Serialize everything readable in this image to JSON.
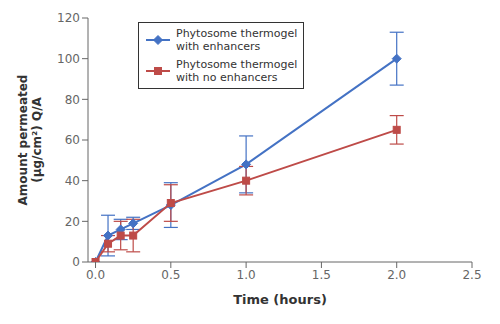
{
  "chart_data": {
    "type": "line",
    "xlabel": "Time (hours)",
    "ylabel": "Amount permeated\n(μg/cm²) Q/A",
    "x": [
      0,
      0.083,
      0.167,
      0.25,
      0.5,
      1.0,
      2.0
    ],
    "series": [
      {
        "name": "Phytosome thermogel\nwith enhancers",
        "color": "#4472C4",
        "marker": "diamond",
        "line_style": "solid",
        "values": [
          0,
          13,
          16,
          19,
          28,
          48,
          100
        ],
        "errors": [
          0,
          10,
          5,
          3,
          11,
          14,
          13
        ]
      },
      {
        "name": "Phytosome thermogel\nwith no enhancers",
        "color": "#BE4B48",
        "marker": "square",
        "line_style": "solid",
        "values": [
          0,
          9,
          13,
          13,
          29,
          40,
          65
        ],
        "errors": [
          0,
          4,
          7,
          8,
          9,
          7,
          7
        ]
      }
    ],
    "xlim": [
      -0.05,
      2.5
    ],
    "ylim": [
      0,
      120
    ],
    "xticks": [
      {
        "value": 0,
        "label": "0.0"
      },
      {
        "value": 0.5,
        "label": "0.5"
      },
      {
        "value": 1.0,
        "label": "1.0"
      },
      {
        "value": 1.5,
        "label": "1.5"
      },
      {
        "value": 2.0,
        "label": "2.0"
      },
      {
        "value": 2.5,
        "label": "2.5"
      }
    ],
    "yticks": [
      0,
      20,
      40,
      60,
      80,
      100,
      120
    ],
    "legend": "upper left",
    "grid": false
  }
}
